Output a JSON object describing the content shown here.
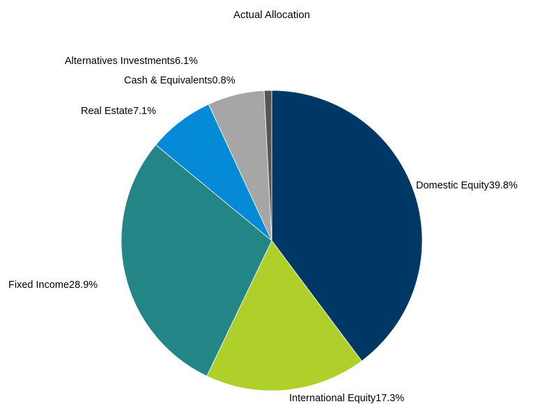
{
  "chart_data": {
    "type": "pie",
    "title": "Actual Allocation",
    "start_angle_deg": 0,
    "direction": "clockwise",
    "slices": [
      {
        "label": "Domestic Equity39.8%",
        "name": "Domestic Equity",
        "value": 39.8,
        "color": "#003865"
      },
      {
        "label": "International Equity17.3%",
        "name": "International Equity",
        "value": 17.3,
        "color": "#afd02b"
      },
      {
        "label": "Fixed Income28.9%",
        "name": "Fixed Income",
        "value": 28.9,
        "color": "#238585"
      },
      {
        "label": "Real Estate7.1%",
        "name": "Real Estate",
        "value": 7.1,
        "color": "#058ad8"
      },
      {
        "label": "Alternatives Investments6.1%",
        "name": "Alternatives Investments",
        "value": 6.1,
        "color": "#a6a6a6"
      },
      {
        "label": "Cash & Equivalents0.8%",
        "name": "Cash & Equivalents",
        "value": 0.8,
        "color": "#555555"
      }
    ]
  }
}
